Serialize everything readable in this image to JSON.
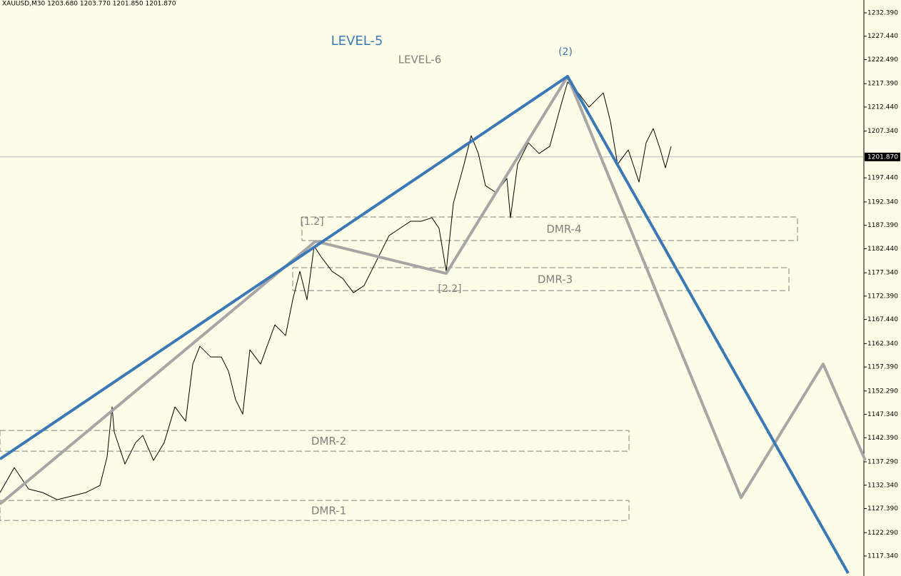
{
  "chart_data": {
    "type": "line",
    "header": "XAUUSD,M30  1203.680 1203.770 1201.850 1201.870",
    "xlim": [
      0,
      605
    ],
    "ylim": [
      1113.11,
      1235.11
    ],
    "yticks": [
      {
        "value": 1232.39,
        "label": "1232.390"
      },
      {
        "value": 1227.44,
        "label": "1227.440"
      },
      {
        "value": 1222.49,
        "label": "1222.490"
      },
      {
        "value": 1217.39,
        "label": "1217.390"
      },
      {
        "value": 1212.44,
        "label": "1212.440"
      },
      {
        "value": 1207.34,
        "label": "1207.340"
      },
      {
        "value": 1197.44,
        "label": "1197.440"
      },
      {
        "value": 1192.34,
        "label": "1192.340"
      },
      {
        "value": 1187.39,
        "label": "1187.390"
      },
      {
        "value": 1182.44,
        "label": "1182.440"
      },
      {
        "value": 1177.34,
        "label": "1177.340"
      },
      {
        "value": 1172.39,
        "label": "1172.390"
      },
      {
        "value": 1167.44,
        "label": "1167.440"
      },
      {
        "value": 1162.34,
        "label": "1162.340"
      },
      {
        "value": 1157.39,
        "label": "1157.390"
      },
      {
        "value": 1152.29,
        "label": "1152.290"
      },
      {
        "value": 1147.34,
        "label": "1147.340"
      },
      {
        "value": 1142.39,
        "label": "1142.390"
      },
      {
        "value": 1137.29,
        "label": "1137.290"
      },
      {
        "value": 1132.34,
        "label": "1132.340"
      },
      {
        "value": 1127.39,
        "label": "1127.390"
      },
      {
        "value": 1122.29,
        "label": "1122.290"
      },
      {
        "value": 1117.34,
        "label": "1117.340"
      }
    ],
    "last_price": {
      "value": 1201.87,
      "label": "1201.870"
    },
    "series": [
      {
        "color": "#000000",
        "x": [
          0,
          10,
          20,
          30,
          40,
          50,
          60,
          70,
          75,
          78.5,
          80,
          87.5,
          95,
          100,
          107.5,
          115,
          122.5,
          130,
          135,
          140,
          147.5,
          155,
          160,
          165,
          170,
          175,
          182.5,
          192.5,
          200,
          205,
          210,
          215,
          220,
          225,
          232.5,
          240,
          247.5,
          255,
          260,
          265,
          272.5,
          280,
          287.5,
          295,
          302.5,
          307.5,
          312.5,
          317.5,
          325,
          330,
          335,
          340,
          347.5,
          355,
          357.5,
          362.5,
          370,
          377.5,
          385,
          392.5,
          397.5,
          405,
          412.5,
          422.5,
          427.5,
          432.5,
          440,
          447.5,
          452.5,
          457.5,
          462.5,
          466,
          470
        ],
        "values": [
          1130.78,
          1136.07,
          1131.54,
          1130.78,
          1129.27,
          1130.03,
          1130.78,
          1132.29,
          1138.34,
          1148.93,
          1143.63,
          1136.83,
          1141.37,
          1142.88,
          1137.59,
          1141.37,
          1148.93,
          1145.9,
          1158.0,
          1161.78,
          1159.51,
          1159.51,
          1156.49,
          1150.44,
          1147.41,
          1161.02,
          1158.0,
          1166.31,
          1164.05,
          1171.61,
          1177.65,
          1171.61,
          1182.95,
          1180.68,
          1177.65,
          1176.14,
          1173.12,
          1174.63,
          1177.65,
          1180.68,
          1185.21,
          1186.73,
          1188.24,
          1188.24,
          1188.99,
          1186.73,
          1177.65,
          1192.02,
          1200.33,
          1206.38,
          1202.6,
          1195.8,
          1194.29,
          1197.31,
          1188.99,
          1200.33,
          1204.87,
          1202.6,
          1204.11,
          1212.43,
          1217.72,
          1215.45,
          1212.43,
          1215.45,
          1209.41,
          1200.33,
          1203.36,
          1196.55,
          1204.87,
          1207.89,
          1203.36,
          1199.58,
          1204.11
        ]
      },
      {
        "color": "#a6a6a6",
        "x": [
          0,
          221,
          312.5,
          397.5,
          519,
          576.5,
          606
        ],
        "values": [
          1128.36,
          1184.0,
          1177.2,
          1218.93,
          1129.7,
          1158.0,
          1137.6
        ]
      },
      {
        "color": "#3b79b6",
        "x": [
          0,
          397.5,
          594
        ],
        "values": [
          1137.89,
          1218.93,
          1113.7
        ]
      }
    ],
    "zones": [
      {
        "name": "DMR-4",
        "x": [
          211.5,
          558.5
        ],
        "values": [
          1189.15,
          1184.16
        ]
      },
      {
        "name": "DMR-3",
        "x": [
          205,
          552.5
        ],
        "values": [
          1178.41,
          1173.57
        ]
      },
      {
        "name": "DMR-2",
        "x": [
          0,
          440.5
        ],
        "values": [
          1143.94,
          1139.55
        ]
      },
      {
        "name": "DMR-1",
        "x": [
          0,
          440.5
        ],
        "values": [
          1129.12,
          1124.89
        ]
      }
    ],
    "annotations": [
      "LEVEL-5",
      "LEVEL-6",
      "(2)",
      "[1.2]",
      "[2.2]"
    ]
  }
}
